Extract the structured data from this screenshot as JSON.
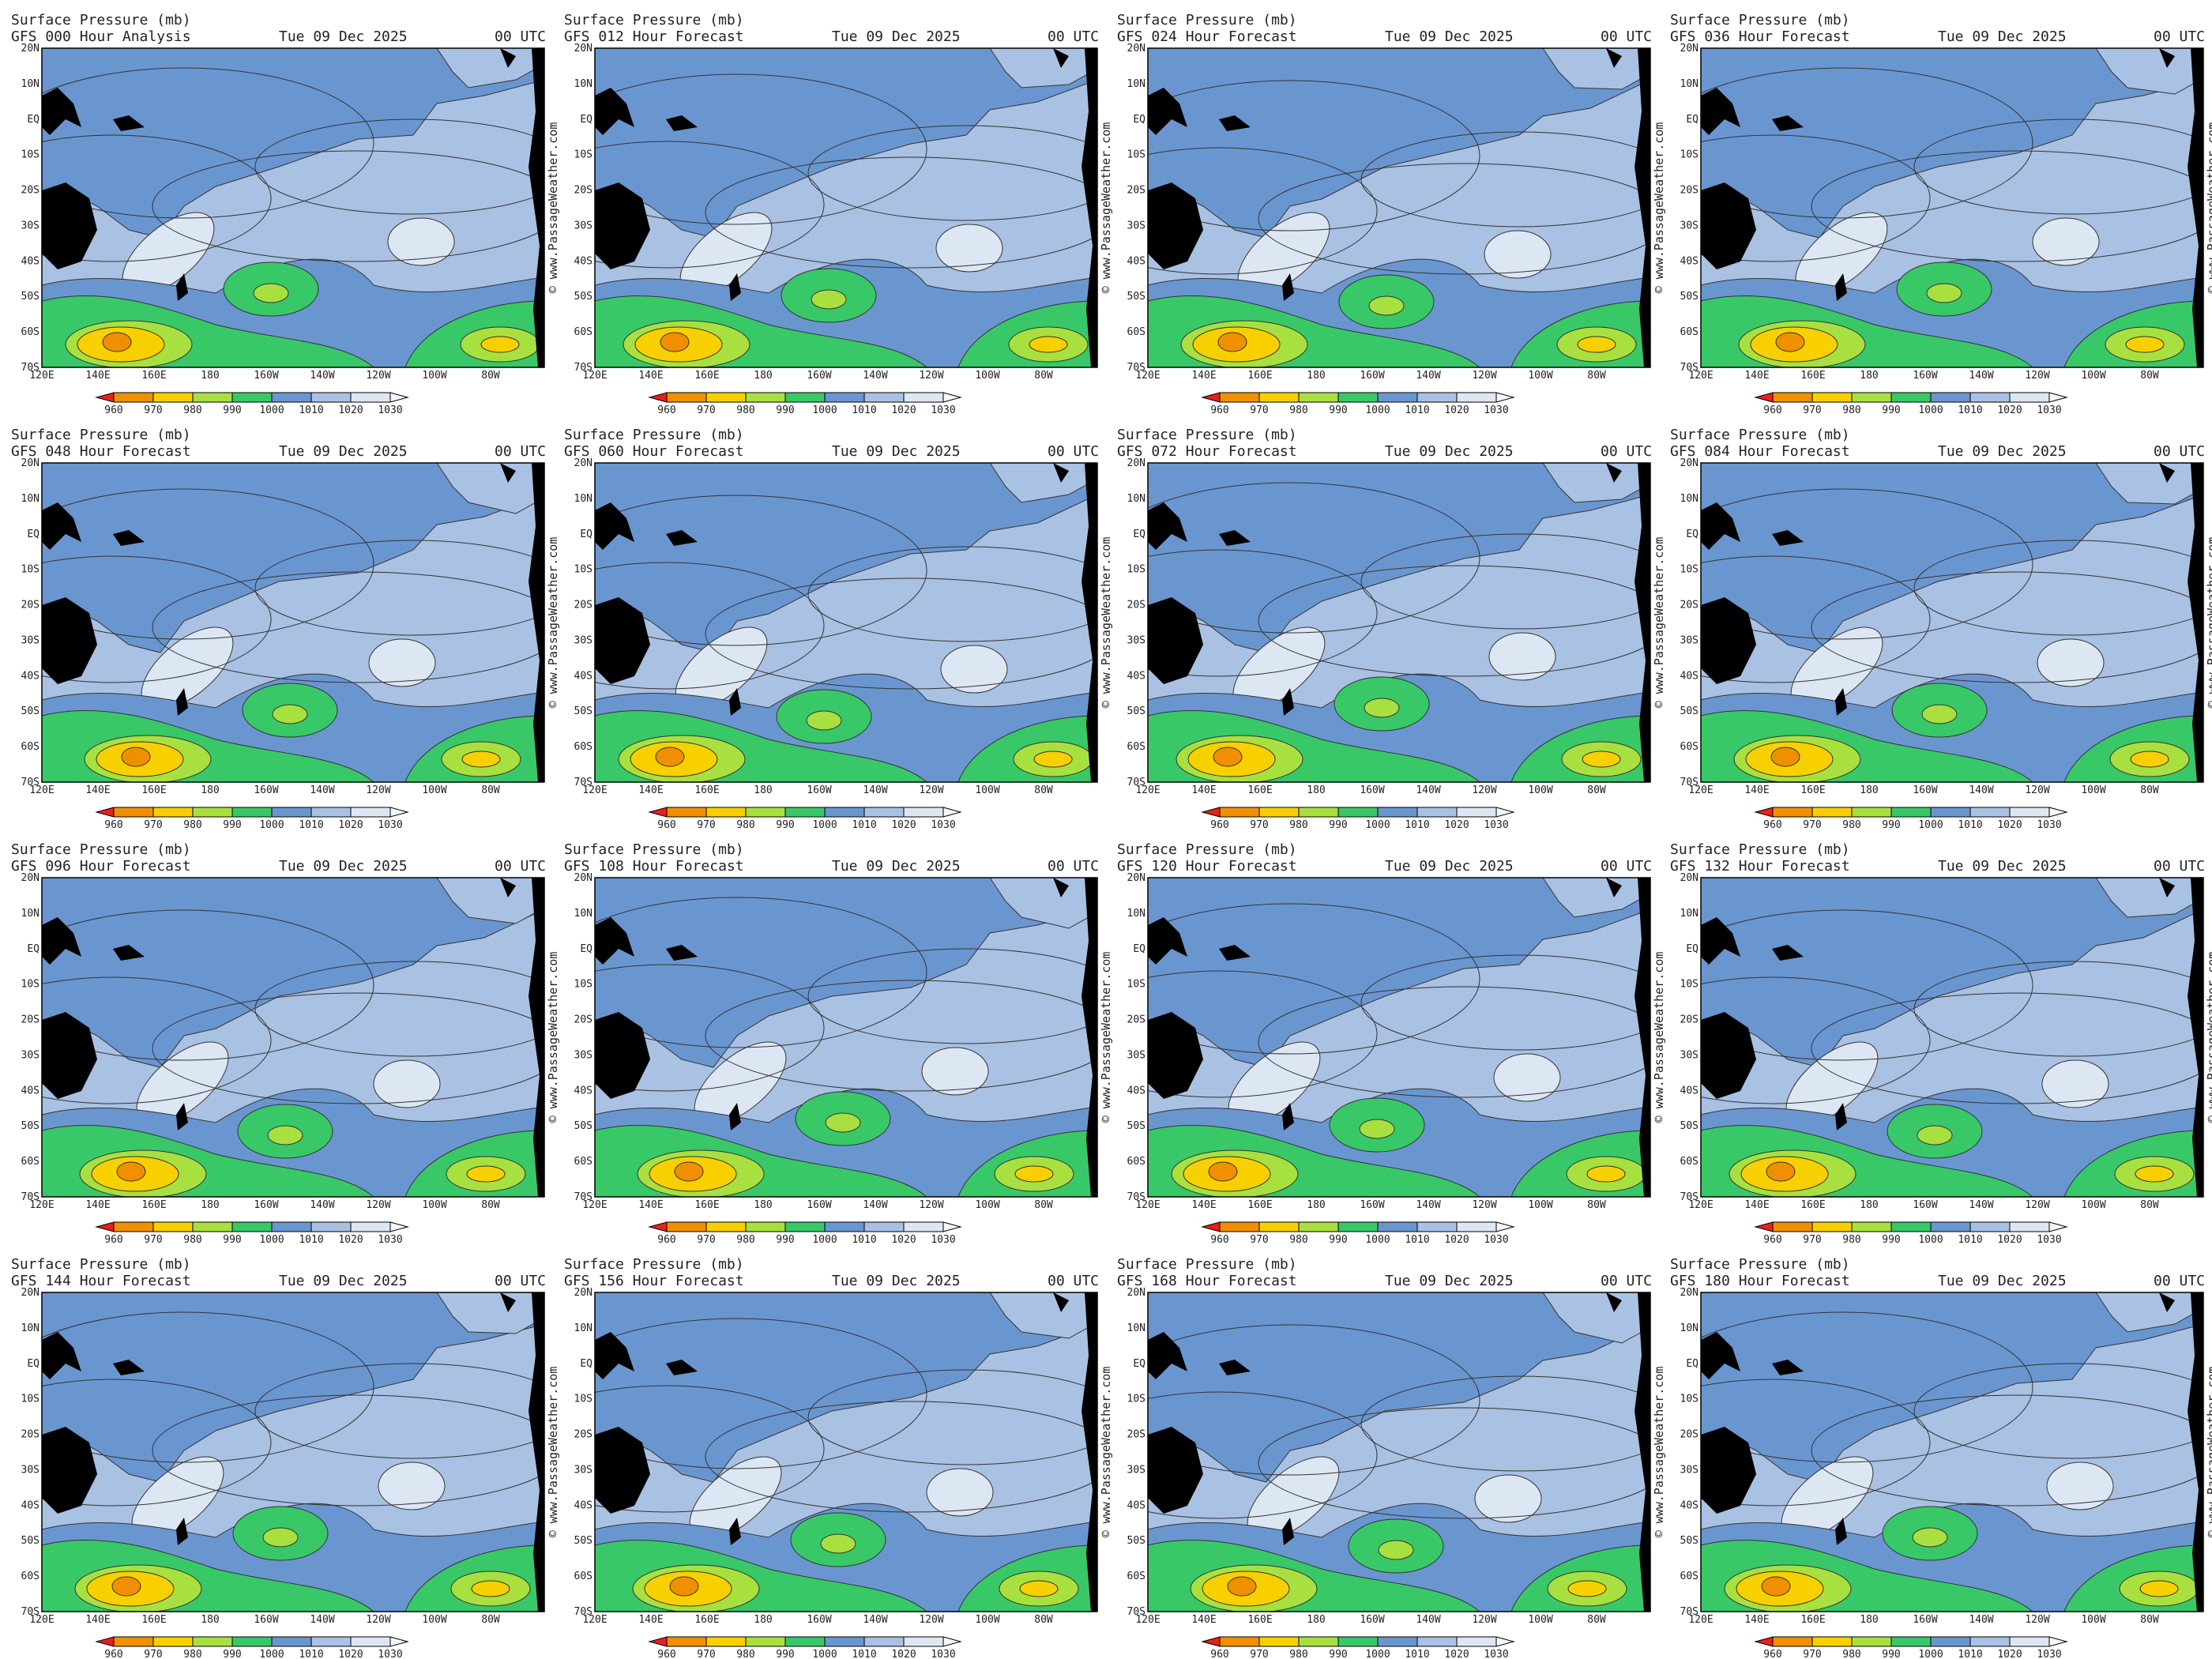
{
  "panels": [
    {
      "title": "Surface Pressure (mb)",
      "subtitle": "GFS 000 Hour Analysis",
      "date": "Tue 09 Dec 2025",
      "time": "00 UTC"
    },
    {
      "title": "Surface Pressure (mb)",
      "subtitle": "GFS 012 Hour Forecast",
      "date": "Tue 09 Dec 2025",
      "time": "00 UTC"
    },
    {
      "title": "Surface Pressure (mb)",
      "subtitle": "GFS 024 Hour Forecast",
      "date": "Tue 09 Dec 2025",
      "time": "00 UTC"
    },
    {
      "title": "Surface Pressure (mb)",
      "subtitle": "GFS 036 Hour Forecast",
      "date": "Tue 09 Dec 2025",
      "time": "00 UTC"
    },
    {
      "title": "Surface Pressure (mb)",
      "subtitle": "GFS 048 Hour Forecast",
      "date": "Tue 09 Dec 2025",
      "time": "00 UTC"
    },
    {
      "title": "Surface Pressure (mb)",
      "subtitle": "GFS 060 Hour Forecast",
      "date": "Tue 09 Dec 2025",
      "time": "00 UTC"
    },
    {
      "title": "Surface Pressure (mb)",
      "subtitle": "GFS 072 Hour Forecast",
      "date": "Tue 09 Dec 2025",
      "time": "00 UTC"
    },
    {
      "title": "Surface Pressure (mb)",
      "subtitle": "GFS 084 Hour Forecast",
      "date": "Tue 09 Dec 2025",
      "time": "00 UTC"
    },
    {
      "title": "Surface Pressure (mb)",
      "subtitle": "GFS 096 Hour Forecast",
      "date": "Tue 09 Dec 2025",
      "time": "00 UTC"
    },
    {
      "title": "Surface Pressure (mb)",
      "subtitle": "GFS 108 Hour Forecast",
      "date": "Tue 09 Dec 2025",
      "time": "00 UTC"
    },
    {
      "title": "Surface Pressure (mb)",
      "subtitle": "GFS 120 Hour Forecast",
      "date": "Tue 09 Dec 2025",
      "time": "00 UTC"
    },
    {
      "title": "Surface Pressure (mb)",
      "subtitle": "GFS 132 Hour Forecast",
      "date": "Tue 09 Dec 2025",
      "time": "00 UTC"
    },
    {
      "title": "Surface Pressure (mb)",
      "subtitle": "GFS 144 Hour Forecast",
      "date": "Tue 09 Dec 2025",
      "time": "00 UTC"
    },
    {
      "title": "Surface Pressure (mb)",
      "subtitle": "GFS 156 Hour Forecast",
      "date": "Tue 09 Dec 2025",
      "time": "00 UTC"
    },
    {
      "title": "Surface Pressure (mb)",
      "subtitle": "GFS 168 Hour Forecast",
      "date": "Tue 09 Dec 2025",
      "time": "00 UTC"
    },
    {
      "title": "Surface Pressure (mb)",
      "subtitle": "GFS 180 Hour Forecast",
      "date": "Tue 09 Dec 2025",
      "time": "00 UTC"
    }
  ],
  "lat_labels": [
    "20N",
    "10N",
    "EQ",
    "10S",
    "20S",
    "30S",
    "40S",
    "50S",
    "60S",
    "70S"
  ],
  "lon_labels": [
    "120E",
    "140E",
    "160E",
    "180",
    "160W",
    "140W",
    "120W",
    "100W",
    "80W"
  ],
  "colorbar": {
    "ticks": [
      960,
      970,
      980,
      990,
      1000,
      1010,
      1020,
      1030
    ],
    "colors": [
      "#e8201c",
      "#f09000",
      "#f8d000",
      "#a8e040",
      "#38c868",
      "#6a96d0",
      "#a9c1e3",
      "#dde7f4",
      "#f4f7fc"
    ]
  },
  "watermark": "© www.PassageWeather.com"
}
